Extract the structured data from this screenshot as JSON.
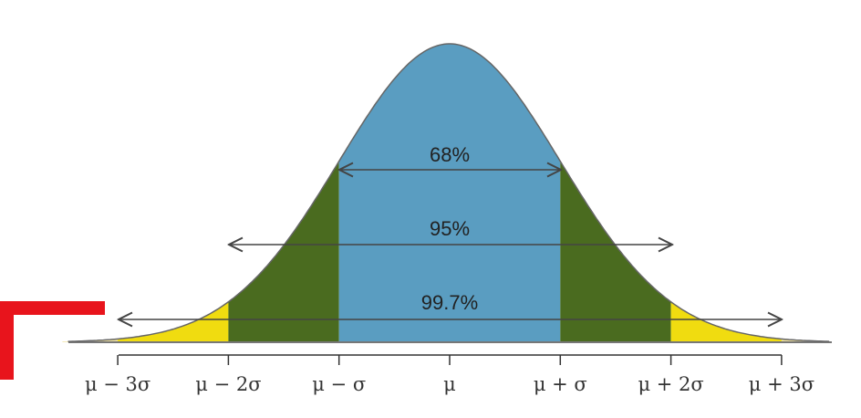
{
  "percentages": {
    "one_sigma": "68%",
    "two_sigma": "95%",
    "three_sigma": "99.7%"
  },
  "axis": {
    "ticks": [
      "μ − 3σ",
      "μ − 2σ",
      "μ − σ",
      "μ",
      "μ + σ",
      "μ + 2σ",
      "μ + 3σ"
    ]
  }
}
